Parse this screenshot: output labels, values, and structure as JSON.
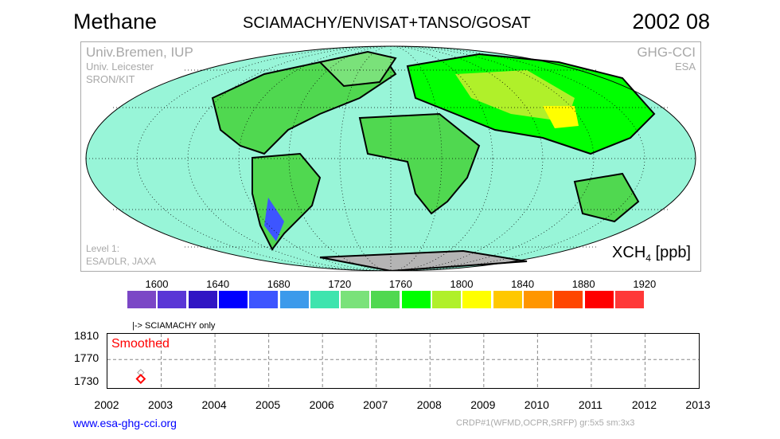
{
  "header": {
    "title": "Methane",
    "subtitle": "SCIAMACHY/ENVISAT+TANSO/GOSAT",
    "date": "2002 08"
  },
  "map": {
    "credits_left": [
      "Univ.Bremen, IUP",
      "Univ. Leicester",
      "SRON/KIT"
    ],
    "credits_right": [
      "GHG-CCI",
      "ESA"
    ],
    "level1": [
      "Level 1:",
      "ESA/DLR, JAXA"
    ],
    "unit_label": "XCH",
    "unit_sub": "4",
    "unit_suffix": " [ppb]",
    "ocean_color": "#98f5d8",
    "antarctica_color": "#b4b4b4"
  },
  "colorbar": {
    "labels": [
      "1600",
      "1640",
      "1680",
      "1720",
      "1760",
      "1800",
      "1840",
      "1880",
      "1920"
    ],
    "colors": [
      "#7b47c6",
      "#5a36d6",
      "#3015c4",
      "#0000ff",
      "#3d55ff",
      "#3c9aeb",
      "#3ee4ae",
      "#7ae27a",
      "#50d850",
      "#00ff00",
      "#b0f02a",
      "#ffff00",
      "#ffc800",
      "#ff9600",
      "#ff4600",
      "#ff0000",
      "#ff3838",
      "#ff5088"
    ]
  },
  "chart_data": {
    "type": "scatter",
    "annotation": "|-> SCIAMACHY only",
    "legend_text": "Smoothed",
    "xlim": [
      2002,
      2013
    ],
    "ylim": [
      1720,
      1815
    ],
    "xticks": [
      "2002",
      "2003",
      "2004",
      "2005",
      "2006",
      "2007",
      "2008",
      "2009",
      "2010",
      "2011",
      "2012",
      "2013"
    ],
    "yticks": [
      "1810",
      "1770",
      "1730"
    ],
    "grid": true,
    "series": [
      {
        "color": "#a0a0a0",
        "x": [
          2002.62
        ],
        "y": [
          1747
        ]
      },
      {
        "color": "#ff0000",
        "x": [
          2002.62
        ],
        "y": [
          1736
        ]
      }
    ]
  },
  "footer": {
    "link": "www.esa-ghg-cci.org",
    "info": "CRDP#1(WFMD,OCPR,SRFP) gr:5x5 sm:3x3"
  }
}
